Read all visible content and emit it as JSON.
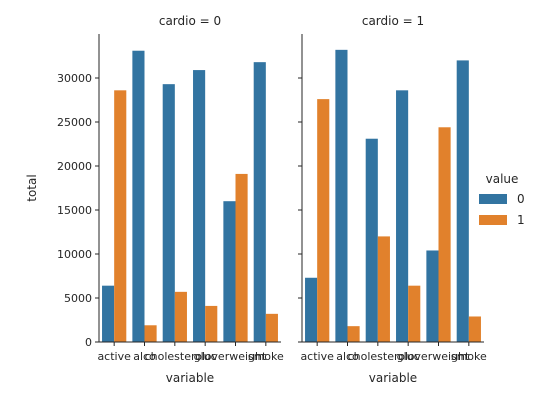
{
  "chart_data": {
    "type": "bar",
    "facet_variable": "cardio",
    "panels": [
      {
        "title": "cardio = 0",
        "categories": [
          "active",
          "alco",
          "cholesterol",
          "gluc",
          "overweight",
          "smoke"
        ],
        "series": [
          {
            "name": "0",
            "values": [
              6400,
              33100,
              29300,
              30900,
              16000,
              31800
            ]
          },
          {
            "name": "1",
            "values": [
              28600,
              1900,
              5700,
              4100,
              19100,
              3200
            ]
          }
        ]
      },
      {
        "title": "cardio = 1",
        "categories": [
          "active",
          "alco",
          "cholesterol",
          "gluc",
          "overweight",
          "smoke"
        ],
        "series": [
          {
            "name": "0",
            "values": [
              7300,
              33200,
              23100,
              28600,
              10400,
              32000
            ]
          },
          {
            "name": "1",
            "values": [
              27600,
              1800,
              12000,
              6400,
              24400,
              2900
            ]
          }
        ]
      }
    ],
    "xlabel": "variable",
    "ylabel": "total",
    "ylim": [
      0,
      35000
    ],
    "yticks": [
      0,
      5000,
      10000,
      15000,
      20000,
      25000,
      30000
    ],
    "legend": {
      "title": "value",
      "entries": [
        "0",
        "1"
      ],
      "placement": "right"
    },
    "colors": {
      "0": "#3274a1",
      "1": "#e1812c"
    },
    "grid": false
  }
}
